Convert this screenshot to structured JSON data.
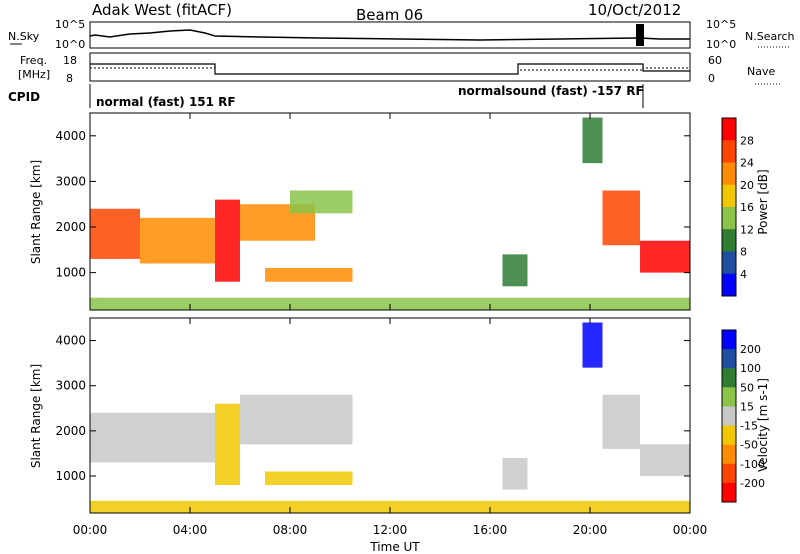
{
  "header": {
    "radar": "Adak West (fitACF)",
    "beam": "Beam 06",
    "date": "10/Oct/2012"
  },
  "noise_panel": {
    "left_label": "N.Sky",
    "right_label": "N.Search",
    "left_ticks": [
      "10^5",
      "10^0"
    ],
    "right_ticks": [
      "10^5",
      "10^0"
    ]
  },
  "freq_panel": {
    "left_label_1": "Freq.",
    "left_label_2": "[MHz]",
    "right_label": "Nave",
    "left_ticks": [
      "18",
      "8"
    ],
    "right_ticks": [
      "60",
      "0"
    ]
  },
  "cpid": {
    "label": "CPID",
    "segments": [
      {
        "name": "normal (fast) 151 RF",
        "start_hour": 0,
        "end_hour": 22
      },
      {
        "name": "normalsound (fast) -157 RF",
        "start_hour": 17,
        "end_hour": 22
      }
    ]
  },
  "x_axis": {
    "title": "Time UT",
    "ticks": [
      "00:00",
      "04:00",
      "08:00",
      "12:00",
      "16:00",
      "20:00",
      "00:00"
    ]
  },
  "power_panel": {
    "ylabel": "Slant Range [km]",
    "yticks": [
      "1000",
      "2000",
      "3000",
      "4000"
    ],
    "colorbar_label": "Power [dB]",
    "colorbar_ticks": [
      "4",
      "8",
      "12",
      "16",
      "20",
      "24",
      "28"
    ]
  },
  "velocity_panel": {
    "ylabel": "Slant Range [km]",
    "yticks": [
      "1000",
      "2000",
      "3000",
      "4000"
    ],
    "colorbar_label": "Velocity [m s-1]",
    "colorbar_ticks": [
      "200",
      "100",
      "50",
      "15",
      "-15",
      "-50",
      "-100",
      "-200"
    ]
  },
  "chart_data": [
    {
      "type": "heatmap",
      "title": "Power",
      "xlabel": "Time UT",
      "ylabel": "Slant Range [km]",
      "xlim": [
        0,
        24
      ],
      "ylim": [
        180,
        4500
      ],
      "zlabel": "Power [dB]",
      "zlim": [
        0,
        32
      ],
      "colorscale": [
        "#0000ff",
        "#1f4ea0",
        "#2e7d32",
        "#8bc34a",
        "#f0c800",
        "#ff8c00",
        "#ff4500",
        "#ff0000"
      ],
      "regions": [
        {
          "start_hour": 0.0,
          "end_hour": 2.0,
          "range_min_km": 1300,
          "range_max_km": 2400,
          "power_db": 26
        },
        {
          "start_hour": 2.0,
          "end_hour": 5.0,
          "range_min_km": 1200,
          "range_max_km": 2200,
          "power_db": 22
        },
        {
          "start_hour": 5.0,
          "end_hour": 6.0,
          "range_min_km": 800,
          "range_max_km": 2600,
          "power_db": 30
        },
        {
          "start_hour": 6.0,
          "end_hour": 9.0,
          "range_min_km": 1700,
          "range_max_km": 2500,
          "power_db": 22
        },
        {
          "start_hour": 8.0,
          "end_hour": 10.5,
          "range_min_km": 2300,
          "range_max_km": 2800,
          "power_db": 14
        },
        {
          "start_hour": 7.0,
          "end_hour": 10.5,
          "range_min_km": 800,
          "range_max_km": 1100,
          "power_db": 20
        },
        {
          "start_hour": 16.5,
          "end_hour": 17.5,
          "range_min_km": 700,
          "range_max_km": 1400,
          "power_db": 10
        },
        {
          "start_hour": 19.7,
          "end_hour": 20.5,
          "range_min_km": 3400,
          "range_max_km": 4400,
          "power_db": 8
        },
        {
          "start_hour": 20.5,
          "end_hour": 22.0,
          "range_min_km": 1600,
          "range_max_km": 2800,
          "power_db": 24
        },
        {
          "start_hour": 22.0,
          "end_hour": 24.0,
          "range_min_km": 1000,
          "range_max_km": 1700,
          "power_db": 28
        },
        {
          "start_hour": 0.0,
          "end_hour": 24.0,
          "range_min_km": 180,
          "range_max_km": 450,
          "power_db": 12
        }
      ]
    },
    {
      "type": "heatmap",
      "title": "Velocity",
      "xlabel": "Time UT",
      "ylabel": "Slant Range [km]",
      "xlim": [
        0,
        24
      ],
      "ylim": [
        180,
        4500
      ],
      "zlabel": "Velocity [m s-1]",
      "zlim": [
        -250,
        250
      ],
      "colorscale": [
        "#ff0000",
        "#ff4500",
        "#ff8c00",
        "#f0c800",
        "#c8c8c8",
        "#8bc34a",
        "#2e7d32",
        "#1f4ea0",
        "#0000ff"
      ],
      "regions": [
        {
          "start_hour": 0.0,
          "end_hour": 5.0,
          "range_min_km": 1300,
          "range_max_km": 2400,
          "velocity_ms": 0
        },
        {
          "start_hour": 5.0,
          "end_hour": 6.0,
          "range_min_km": 800,
          "range_max_km": 2600,
          "velocity_ms": -40
        },
        {
          "start_hour": 6.0,
          "end_hour": 10.5,
          "range_min_km": 1700,
          "range_max_km": 2800,
          "velocity_ms": 0
        },
        {
          "start_hour": 7.0,
          "end_hour": 10.5,
          "range_min_km": 800,
          "range_max_km": 1100,
          "velocity_ms": -60
        },
        {
          "start_hour": 16.5,
          "end_hour": 17.5,
          "range_min_km": 700,
          "range_max_km": 1400,
          "velocity_ms": 0
        },
        {
          "start_hour": 19.7,
          "end_hour": 20.5,
          "range_min_km": 3400,
          "range_max_km": 4400,
          "velocity_ms": 200
        },
        {
          "start_hour": 20.5,
          "end_hour": 22.0,
          "range_min_km": 1600,
          "range_max_km": 2800,
          "velocity_ms": 0
        },
        {
          "start_hour": 22.0,
          "end_hour": 24.0,
          "range_min_km": 1000,
          "range_max_km": 1700,
          "velocity_ms": 0
        },
        {
          "start_hour": 0.0,
          "end_hour": 24.0,
          "range_min_km": 180,
          "range_max_km": 450,
          "velocity_ms": -40
        }
      ]
    }
  ]
}
